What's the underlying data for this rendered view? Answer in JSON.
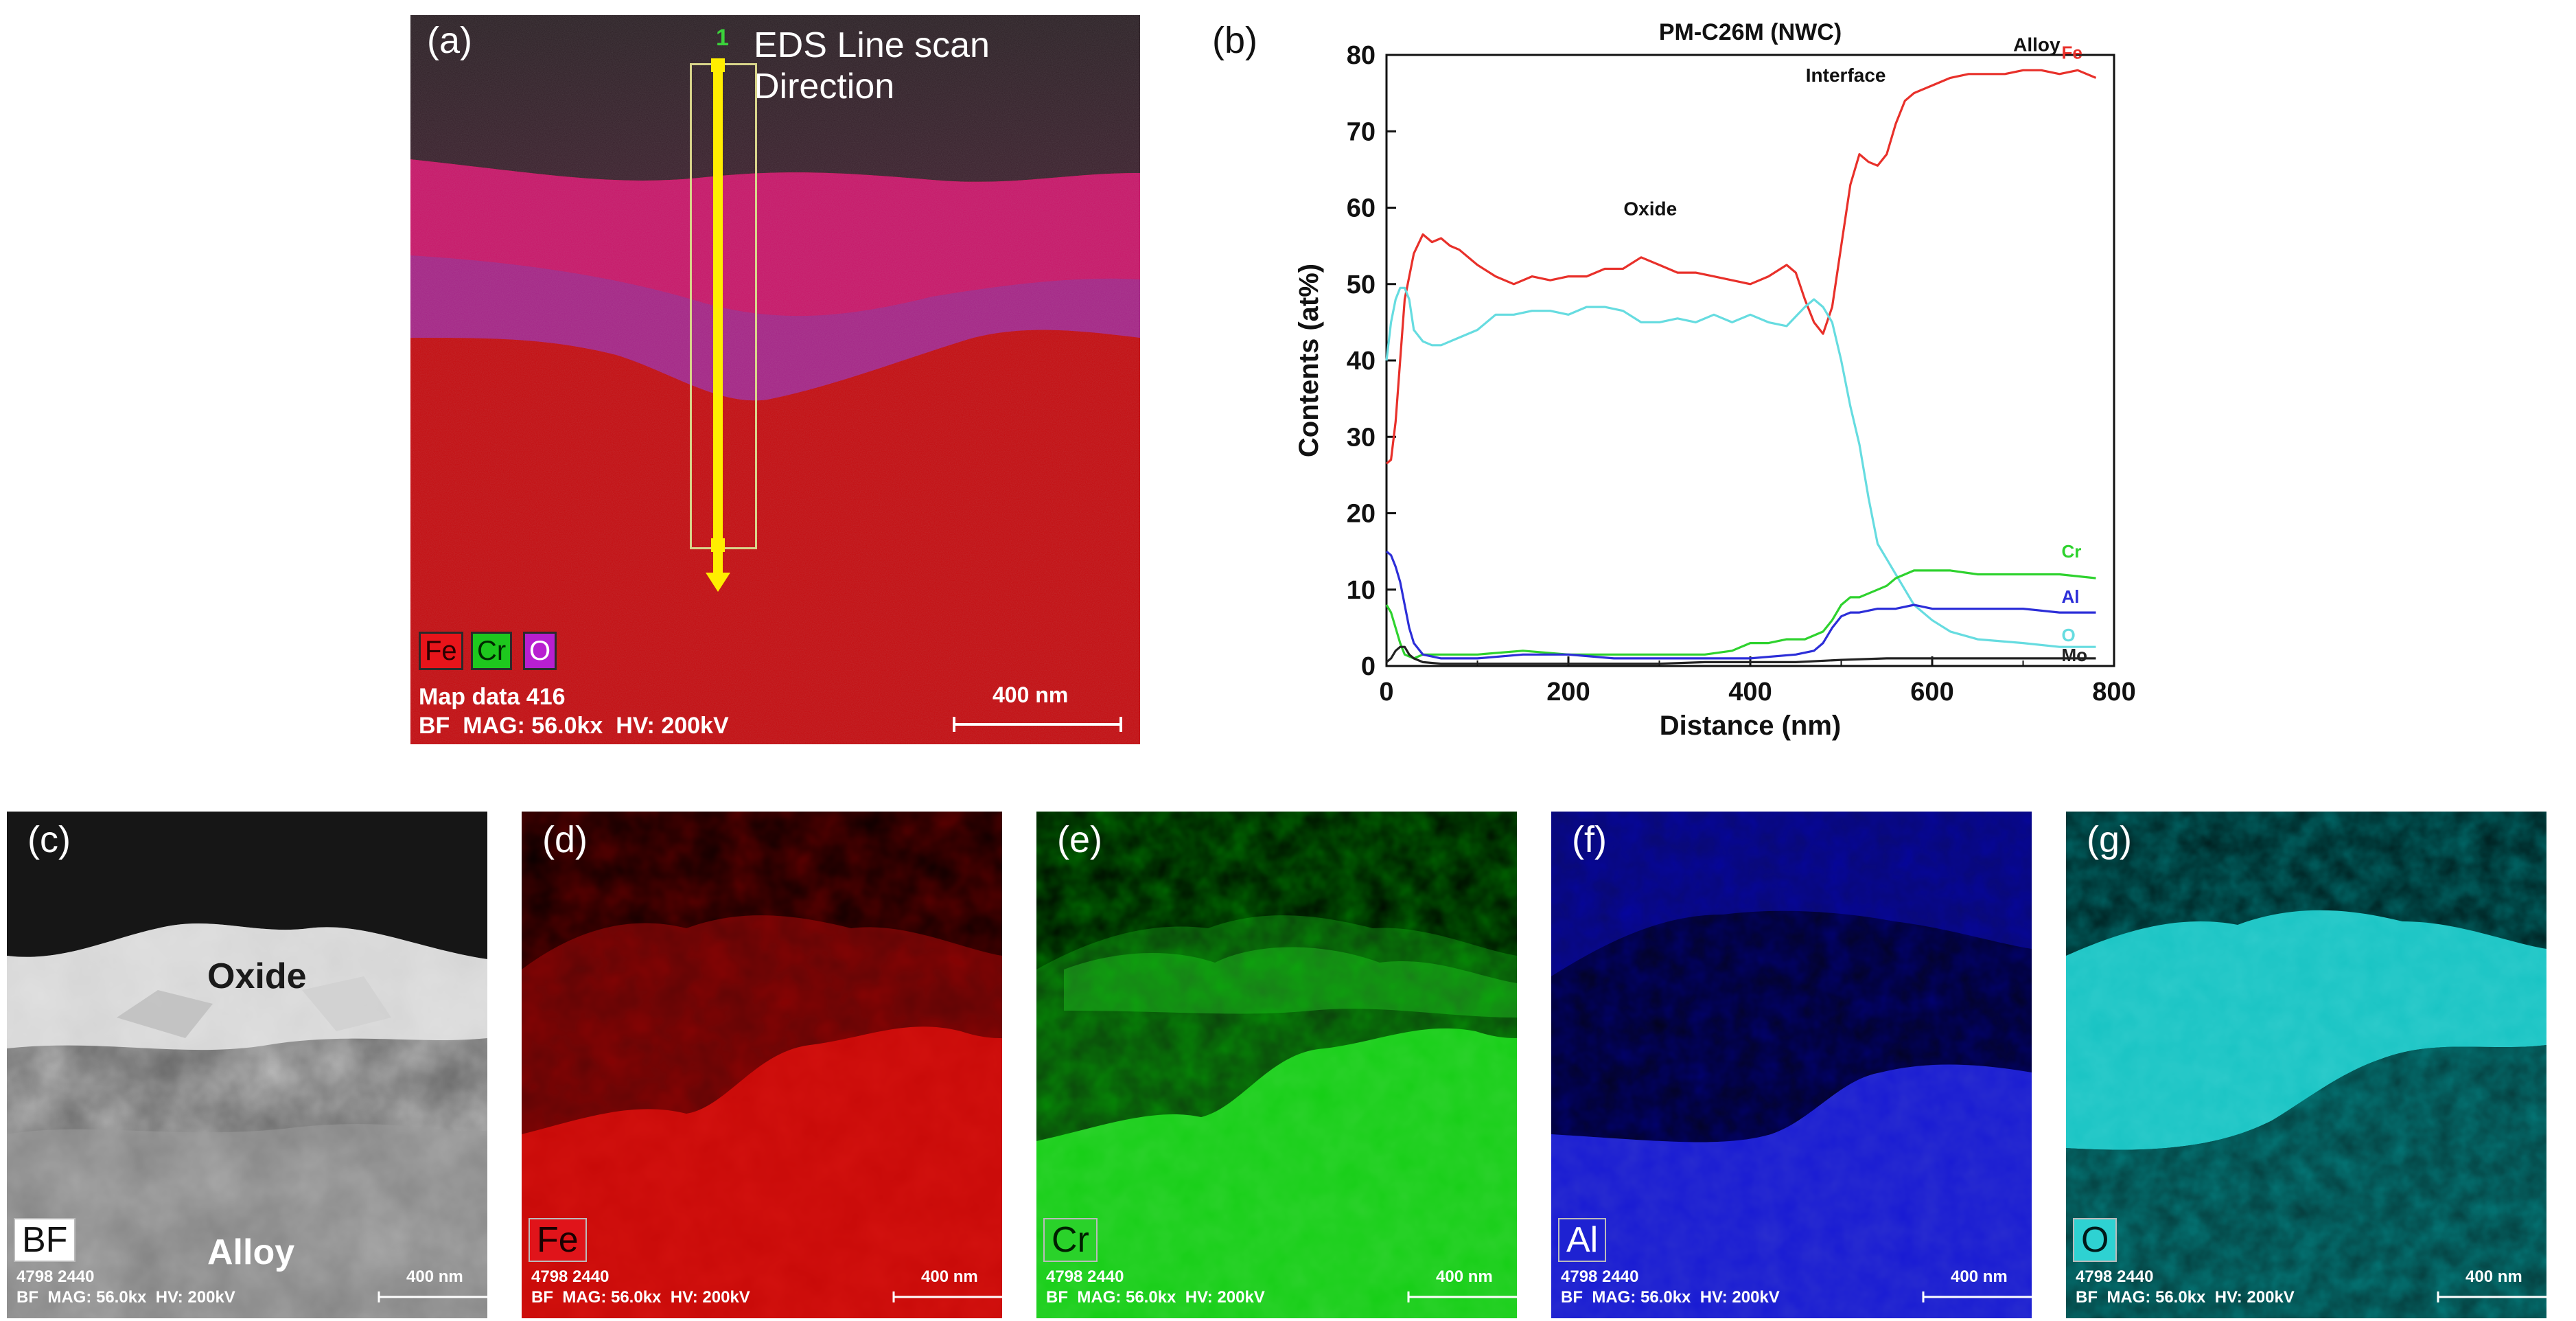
{
  "panel_a": {
    "label": "(a)",
    "scan_title": "EDS Line scan Direction",
    "marker": "1",
    "legend": [
      {
        "text": "Fe",
        "bg": "#e8141a",
        "fg": "#2a0000"
      },
      {
        "text": "Cr",
        "bg": "#1ec81e",
        "fg": "#002a00"
      },
      {
        "text": "O",
        "bg": "#b81fd0",
        "fg": "#ffffff"
      }
    ],
    "map_data": "Map data 416",
    "meta": "BF  MAG: 56.0kx  HV: 200kV",
    "scalebar": "400 nm"
  },
  "panel_b": {
    "label": "(b)",
    "chart_data": {
      "type": "line",
      "title": "PM-C26M (NWC)",
      "xlabel": "Distance (nm)",
      "ylabel": "Contents (at%)",
      "xlim": [
        0,
        800
      ],
      "ylim": [
        0,
        80
      ],
      "xticks": [
        0,
        200,
        400,
        600,
        800
      ],
      "yticks": [
        0,
        10,
        20,
        30,
        40,
        50,
        60,
        70,
        80
      ],
      "annotations": [
        "Oxide",
        "Interface",
        "Alloy"
      ],
      "series": [
        {
          "name": "Fe",
          "color": "#e8302a",
          "x": [
            0,
            5,
            10,
            15,
            20,
            30,
            40,
            50,
            60,
            70,
            80,
            100,
            120,
            140,
            160,
            180,
            200,
            220,
            240,
            260,
            280,
            300,
            320,
            340,
            360,
            380,
            400,
            420,
            440,
            450,
            460,
            470,
            480,
            490,
            500,
            510,
            520,
            530,
            540,
            550,
            560,
            570,
            580,
            600,
            620,
            640,
            660,
            680,
            700,
            720,
            740,
            760,
            780
          ],
          "y": [
            26.5,
            27,
            32,
            40,
            48,
            54,
            56.5,
            55.5,
            56,
            55,
            54.5,
            52.5,
            51,
            50,
            51,
            50.5,
            51,
            51,
            52,
            52,
            53.5,
            52.5,
            51.5,
            51.5,
            51,
            50.5,
            50,
            51,
            52.5,
            51.5,
            48,
            45,
            43.5,
            47,
            55,
            63,
            67,
            66,
            65.5,
            67,
            71,
            74,
            75,
            76,
            77,
            77.5,
            77.5,
            77.5,
            78,
            78,
            77.5,
            78,
            77
          ]
        },
        {
          "name": "O",
          "color": "#66dce0",
          "x": [
            0,
            5,
            10,
            15,
            20,
            25,
            30,
            40,
            50,
            60,
            80,
            100,
            120,
            140,
            160,
            180,
            200,
            220,
            240,
            260,
            280,
            300,
            320,
            340,
            360,
            380,
            400,
            420,
            440,
            460,
            470,
            480,
            490,
            500,
            510,
            520,
            530,
            540,
            550,
            560,
            570,
            580,
            600,
            620,
            650,
            700,
            740,
            780
          ],
          "y": [
            40,
            45,
            48,
            49.5,
            49.5,
            48,
            44,
            42.5,
            42,
            42,
            43,
            44,
            46,
            46,
            46.5,
            46.5,
            46,
            47,
            47,
            46.5,
            45,
            45,
            45.5,
            45,
            46,
            45,
            46,
            45,
            44.5,
            47,
            48,
            47,
            45,
            40,
            34,
            29,
            22,
            16,
            14,
            12,
            10,
            8,
            6,
            4.5,
            3.5,
            3,
            2.5,
            2.5
          ]
        },
        {
          "name": "Cr",
          "color": "#2ed22e",
          "x": [
            0,
            5,
            10,
            15,
            20,
            30,
            40,
            60,
            100,
            150,
            200,
            250,
            300,
            350,
            380,
            400,
            420,
            440,
            460,
            480,
            490,
            500,
            510,
            520,
            530,
            540,
            550,
            560,
            570,
            580,
            600,
            620,
            650,
            700,
            740,
            780
          ],
          "y": [
            8,
            7,
            5,
            3,
            1.5,
            1,
            1.5,
            1.5,
            1.5,
            2,
            1.5,
            1.5,
            1.5,
            1.5,
            2,
            3,
            3,
            3.5,
            3.5,
            4.5,
            6,
            8,
            9,
            9,
            9.5,
            10,
            10.5,
            11.5,
            12,
            12.5,
            12.5,
            12.5,
            12,
            12,
            12,
            11.5
          ]
        },
        {
          "name": "Al",
          "color": "#2c2ed8",
          "x": [
            0,
            5,
            10,
            15,
            20,
            25,
            30,
            40,
            60,
            100,
            150,
            200,
            250,
            300,
            350,
            400,
            450,
            470,
            480,
            490,
            500,
            510,
            520,
            540,
            560,
            580,
            600,
            620,
            650,
            700,
            740,
            780
          ],
          "y": [
            15,
            14.5,
            13,
            11,
            8,
            5,
            3,
            1.5,
            1,
            1,
            1.5,
            1.5,
            1,
            1,
            1,
            1,
            1.5,
            2,
            3,
            5,
            6.5,
            7,
            7,
            7.5,
            7.5,
            8,
            7.5,
            7.5,
            7.5,
            7.5,
            7,
            7
          ]
        },
        {
          "name": "Mo",
          "color": "#222222",
          "x": [
            0,
            5,
            10,
            15,
            20,
            25,
            30,
            40,
            60,
            100,
            150,
            200,
            250,
            300,
            350,
            400,
            450,
            500,
            550,
            600,
            650,
            700,
            750,
            780
          ],
          "y": [
            0.5,
            1,
            2,
            2.5,
            2.5,
            1.5,
            1,
            0.5,
            0.3,
            0.3,
            0.3,
            0.3,
            0.3,
            0.3,
            0.5,
            0.5,
            0.5,
            0.8,
            1,
            1,
            1,
            1,
            1,
            1
          ]
        }
      ]
    }
  },
  "panel_c": {
    "label": "(c)",
    "oxide_label": "Oxide",
    "alloy_label": "Alloy",
    "tag": "BF",
    "meta_line1": "4798 2440",
    "meta_line2": "BF  MAG: 56.0kx  HV: 200kV",
    "scalebar": "400 nm"
  },
  "panel_d": {
    "label": "(d)",
    "tag": "Fe",
    "meta_line1": "4798 2440",
    "meta_line2": "BF  MAG: 56.0kx  HV: 200kV",
    "scalebar": "400 nm"
  },
  "panel_e": {
    "label": "(e)",
    "tag": "Cr",
    "meta_line1": "4798 2440",
    "meta_line2": "BF  MAG: 56.0kx  HV: 200kV",
    "scalebar": "400 nm"
  },
  "panel_f": {
    "label": "(f)",
    "tag": "Al",
    "meta_line1": "4798 2440",
    "meta_line2": "BF  MAG: 56.0kx  HV: 200kV",
    "scalebar": "400 nm"
  },
  "panel_g": {
    "label": "(g)",
    "tag": "O",
    "meta_line1": "4798 2440",
    "meta_line2": "BF  MAG: 56.0kx  HV: 200kV",
    "scalebar": "400 nm"
  }
}
